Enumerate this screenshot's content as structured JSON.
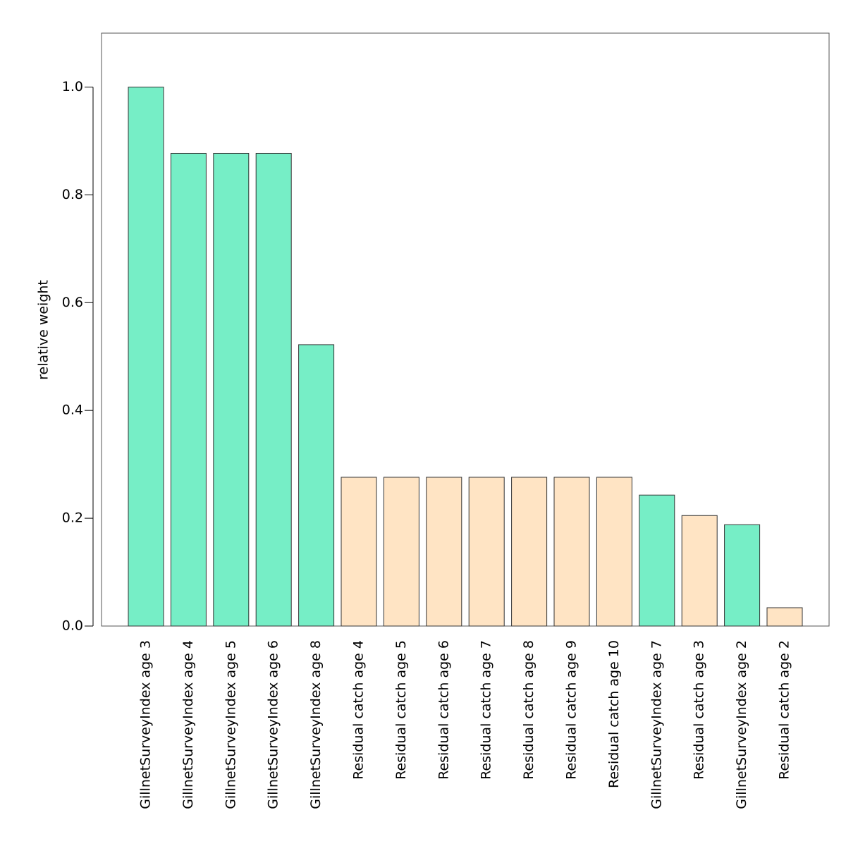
{
  "chart_data": {
    "type": "bar",
    "y_label": "relative weight",
    "categories": [
      "GillnetSurveyIndex age 3",
      "GillnetSurveyIndex age 4",
      "GillnetSurveyIndex age 5",
      "GillnetSurveyIndex age 6",
      "GillnetSurveyIndex age 8",
      "Residual catch age 4",
      "Residual catch age 5",
      "Residual catch age 6",
      "Residual catch age 7",
      "Residual catch age 8",
      "Residual catch age 9",
      "Residual catch age 10",
      "GillnetSurveyIndex age 7",
      "Residual catch age 3",
      "GillnetSurveyIndex age 2",
      "Residual catch age 2"
    ],
    "values": [
      1.0,
      0.877,
      0.877,
      0.877,
      0.522,
      0.276,
      0.276,
      0.276,
      0.276,
      0.276,
      0.276,
      0.276,
      0.243,
      0.205,
      0.188,
      0.034
    ],
    "colors": [
      "#76eec6",
      "#76eec6",
      "#76eec6",
      "#76eec6",
      "#76eec6",
      "#ffe4c4",
      "#ffe4c4",
      "#ffe4c4",
      "#ffe4c4",
      "#ffe4c4",
      "#ffe4c4",
      "#ffe4c4",
      "#76eec6",
      "#ffe4c4",
      "#76eec6",
      "#ffe4c4"
    ],
    "ylim": [
      0,
      1.1
    ],
    "yticks": [
      {
        "value": 0,
        "label": "0.0"
      },
      {
        "value": 0.2,
        "label": "0.2"
      },
      {
        "value": 0.4,
        "label": "0.4"
      },
      {
        "value": 0.6,
        "label": "0.6"
      },
      {
        "value": 0.8,
        "label": "0.8"
      },
      {
        "value": 1,
        "label": "1.0"
      }
    ]
  }
}
